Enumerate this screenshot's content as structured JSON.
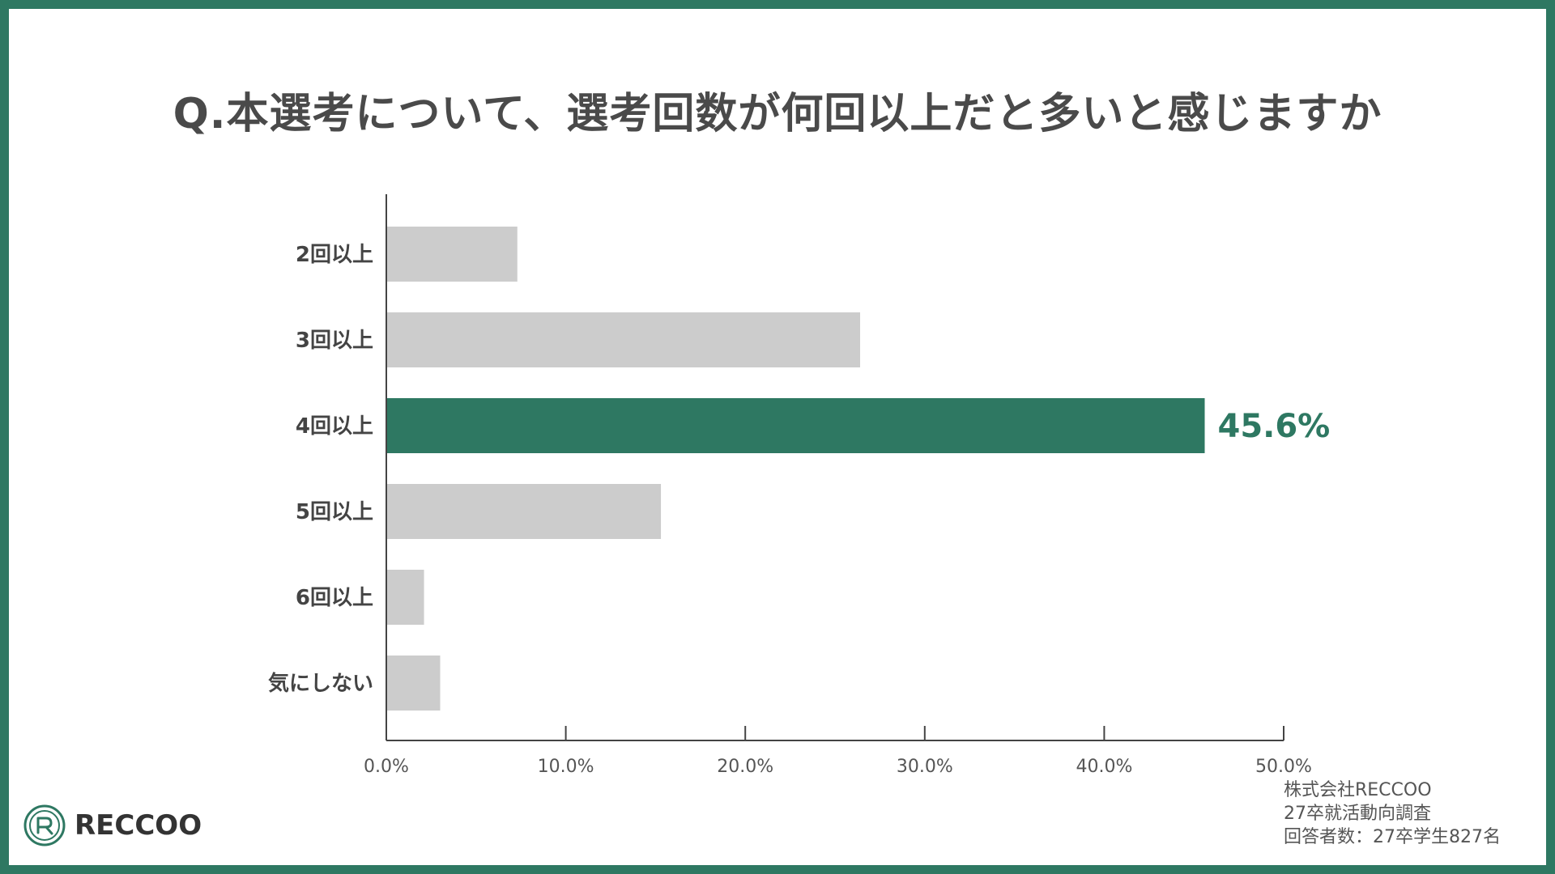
{
  "title": "Q.本選考について、選考回数が何回以上だと多いと感じますか",
  "colors": {
    "frame": "#2e7862",
    "highlight": "#2e7862",
    "bar": "#cccccc",
    "axis": "#444444"
  },
  "chart_data": {
    "type": "bar",
    "orientation": "horizontal",
    "categories": [
      "2回以上",
      "3回以上",
      "4回以上",
      "5回以上",
      "6回以上",
      "気にしない"
    ],
    "values": [
      7.3,
      26.4,
      45.6,
      15.3,
      2.1,
      3.0
    ],
    "highlight_index": 2,
    "highlight_label": "45.6%",
    "xlim": [
      0,
      50
    ],
    "xticks": [
      "0.0%",
      "10.0%",
      "20.0%",
      "30.0%",
      "40.0%",
      "50.0%"
    ],
    "xlabel": "",
    "ylabel": "",
    "grid": false
  },
  "notes": [
    "株式会社RECCOO",
    "27卒就活動向調査",
    "回答者数：27卒学生827名"
  ],
  "logo": {
    "text": "RECCOO",
    "icon": "reccoo-logo-icon"
  }
}
